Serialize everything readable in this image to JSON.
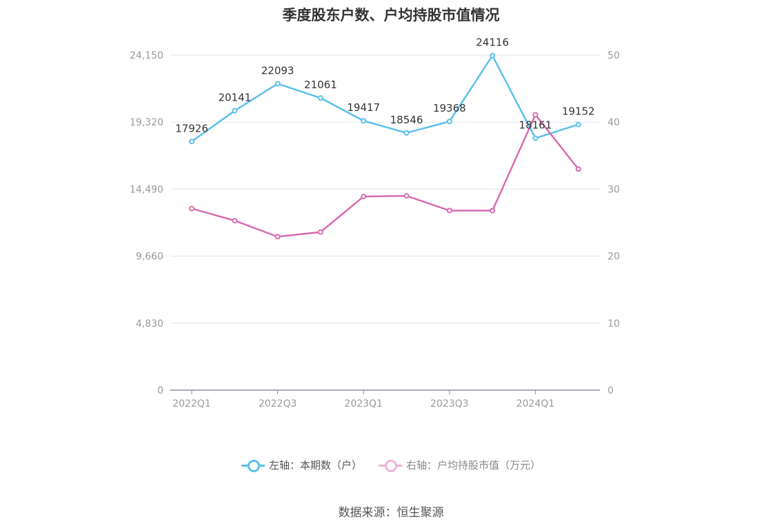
{
  "chart_data": {
    "type": "line",
    "title": "季度股东户数、户均持股市值情况",
    "categories": [
      "2022Q1",
      "2022Q2",
      "2022Q3",
      "2022Q4",
      "2023Q1",
      "2023Q2",
      "2023Q3",
      "2023Q4",
      "2024Q1",
      "2024Q2"
    ],
    "x_tick_labels": [
      "2022Q1",
      "2022Q3",
      "2023Q1",
      "2023Q3",
      "2024Q1"
    ],
    "left_axis": {
      "ylim": [
        0,
        24150
      ],
      "ticks": [
        "0",
        "4,830",
        "9,660",
        "14,490",
        "19,320",
        "24,150"
      ]
    },
    "right_axis": {
      "ylim": [
        0,
        50
      ],
      "ticks": [
        "0",
        "10",
        "20",
        "30",
        "40",
        "50"
      ]
    },
    "series": [
      {
        "name": "左轴：本期数（户）",
        "axis": "left",
        "color": "#5bc0eb",
        "values": [
          17926,
          20141,
          22093,
          21061,
          19417,
          18546,
          19368,
          24116,
          18161,
          19152
        ],
        "labels": [
          "17926",
          "20141",
          "22093",
          "21061",
          "19417",
          "18546",
          "19368",
          "24116",
          "18161",
          "19152"
        ]
      },
      {
        "name": "右轴：户均持股市值（万元）",
        "axis": "right",
        "color": "#d66bb0",
        "values": [
          27.1,
          25.3,
          22.9,
          23.6,
          28.9,
          29.0,
          26.8,
          26.8,
          41.1,
          33.0
        ]
      }
    ],
    "grid": true,
    "legend": "bottom-center"
  },
  "source": "数据来源：恒生聚源"
}
